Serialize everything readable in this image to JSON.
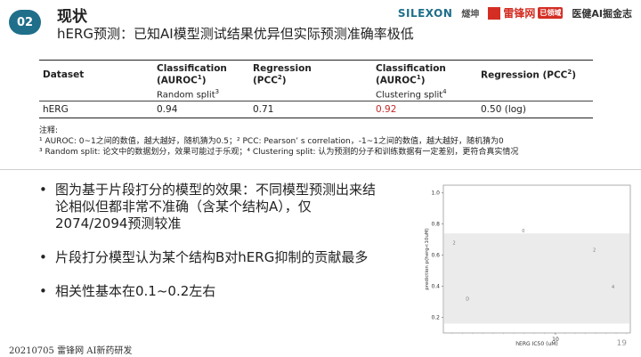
{
  "header": {
    "section_number": "02",
    "section_title": "现状",
    "subtitle": "hERG预测：已知AI模型测试结果优异但实际预测准确率极低",
    "logos": {
      "silexon": "SILEXON",
      "silexon_cn": "燧坤",
      "leifeng": "雷锋网",
      "leifeng_tag": "已领域",
      "yijian": "医健AI掘金志"
    }
  },
  "table": {
    "headers": {
      "dataset": "Dataset",
      "col1_line1": "Classification",
      "col1_line2": "(AUROC",
      "col1_sup": "1",
      "col1_end": ")",
      "col2_line1": "Regression",
      "col2_line2": "(PCC",
      "col2_sup": "2",
      "col2_end": ")",
      "col3_line1": "Classification",
      "col3_line2": "(AUROC",
      "col3_sup": "1",
      "col3_end": ")",
      "col4": "Regression (PCC",
      "col4_sup": "2",
      "col4_end": ")"
    },
    "split_random": "Random split",
    "split_random_sup": "3",
    "split_clustering": "Clustering split",
    "split_clustering_sup": "4",
    "row": {
      "dataset": "hERG",
      "v1": "0.94",
      "v2": "0.71",
      "v3": "0.92",
      "v4": "0.50 (log)"
    }
  },
  "notes": {
    "title": "注释:",
    "line1": "¹ AUROC: 0~1之间的数值，越大越好，随机猜为0.5；² PCC: Pearson’ s correlation，-1~1之间的数值，越大越好，随机猜为0",
    "line2": "³ Random split: 论文中的数据划分，效果可能过于乐观；⁴ Clustering split: 认为预测的分子和训练数据有一定差别，更符合真实情况"
  },
  "bullets": [
    "图为基于片段打分的模型的效果：不同模型预测出来结论相似但都非常不准确（含某个结构A），仅2074/2094预测较准",
    "片段打分模型认为某个结构B对hERG抑制的贡献最多",
    "相关性基本在0.1~0.2左右"
  ],
  "chart_data": {
    "type": "scatter",
    "xlabel": "hERG IC50 (uM)",
    "ylabel": "prediction p(herg<10uM)",
    "x_scale": "log",
    "x_ticks": [
      "10"
    ],
    "y_ticks": [
      "0.2",
      "0.4",
      "0.6",
      "0.8",
      "1.0"
    ],
    "ylim": [
      0.1,
      1.05
    ],
    "band": {
      "y_low": 0.16,
      "y_high": 0.74
    },
    "colors": {
      "band": "#ebebeb",
      "point": "#777777"
    },
    "point_labels": [
      {
        "text": "2",
        "x": 0.05,
        "y": 0.6
      },
      {
        "text": "D",
        "x": 0.12,
        "y": 0.22
      },
      {
        "text": "0",
        "x": 0.42,
        "y": 0.68
      },
      {
        "text": "2",
        "x": 0.8,
        "y": 0.55
      },
      {
        "text": "4",
        "x": 0.9,
        "y": 0.3
      }
    ]
  },
  "footer": {
    "left": "20210705 雷锋网 AI新药研发",
    "page": "19"
  }
}
